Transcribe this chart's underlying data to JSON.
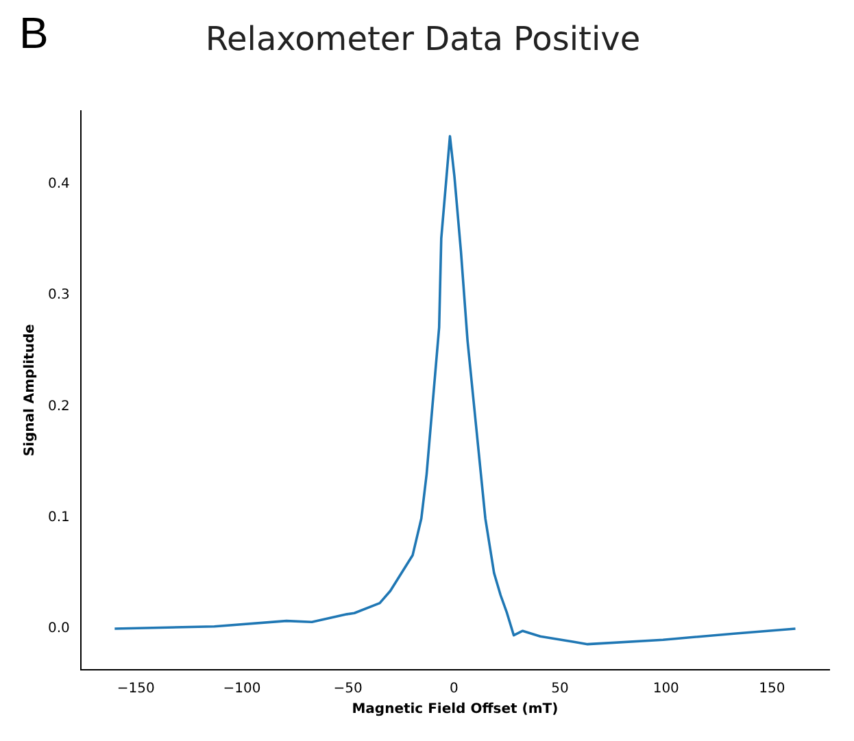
{
  "chart_data": {
    "type": "line",
    "title": "Relaxometer Data Positive",
    "xlabel": "Magnetic Field Offset (mT)",
    "ylabel": "Signal Amplitude",
    "annotations": [
      "B"
    ],
    "series": [
      {
        "color": "#1f77b4",
        "x": [
          -160,
          -113,
          -79,
          -67,
          -50.5,
          -47,
          -35,
          -30,
          -19.5,
          -15.4,
          -12.9,
          -7,
          -6,
          -1.9,
          0.2,
          3.3,
          6.4,
          10.6,
          14.8,
          18.9,
          22,
          25,
          28.2,
          32.4,
          40.7,
          57,
          63,
          98.6,
          132,
          161
        ],
        "values": [
          0,
          0.002,
          0.007,
          0.006,
          0.013,
          0.014,
          0.023,
          0.034,
          0.066,
          0.099,
          0.139,
          0.271,
          0.351,
          0.443,
          0.407,
          0.339,
          0.259,
          0.179,
          0.099,
          0.05,
          0.03,
          0.014,
          -0.006,
          -0.002,
          -0.007,
          -0.012,
          -0.014,
          -0.01,
          -0.0045,
          0
        ]
      }
    ],
    "xlim": [
      -176,
      177
    ],
    "xticks": [
      {
        "value": -150,
        "label": "−150"
      },
      {
        "value": -100,
        "label": "−100"
      },
      {
        "value": -50,
        "label": "−50"
      },
      0,
      50,
      100,
      150
    ],
    "ylim": [
      -0.037,
      0.466
    ],
    "yticks": [
      {
        "value": 0,
        "label": "0.0"
      },
      0.1,
      0.2,
      0.3,
      0.4
    ],
    "grid": false,
    "legend": false,
    "marker": "none",
    "line_style": "solid"
  }
}
